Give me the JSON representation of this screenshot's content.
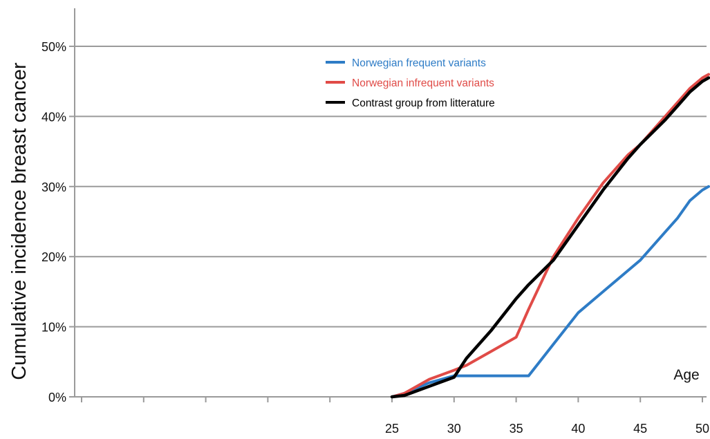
{
  "chart_data": {
    "type": "line",
    "xlabel": "Age",
    "ylabel": "Cumulative incidence breast cancer",
    "x_ticks": [
      25,
      30,
      35,
      40,
      45,
      50
    ],
    "x_tick_labels": [
      "25",
      "30",
      "35",
      "40",
      "45",
      "50"
    ],
    "y_ticks": [
      0,
      10,
      20,
      30,
      40,
      50
    ],
    "y_tick_labels": [
      "0%",
      "10%",
      "20%",
      "30%",
      "40%",
      "50%"
    ],
    "xlim": [
      0,
      51
    ],
    "ylim": [
      0,
      50
    ],
    "grid": "horizontal",
    "legend_position": "top-center",
    "series": [
      {
        "name": "Norwegian frequent variants",
        "color": "#2E7CC6",
        "x": [
          25,
          26,
          28,
          30,
          31,
          33,
          35,
          36,
          38,
          40,
          42,
          44,
          45,
          47,
          48,
          49,
          50,
          50.5
        ],
        "y": [
          0,
          0.5,
          2,
          3,
          3,
          3,
          3,
          3,
          7.5,
          12,
          15,
          18,
          19.5,
          23.5,
          25.5,
          28,
          29.5,
          30
        ]
      },
      {
        "name": "Norwegian infrequent variants",
        "color": "#E04B47",
        "x": [
          25,
          26,
          28,
          30,
          31,
          33,
          35,
          36,
          38,
          40,
          42,
          44,
          45,
          47,
          48,
          49,
          50,
          50.5
        ],
        "y": [
          0,
          0.5,
          2.5,
          3.8,
          4.5,
          6.5,
          8.5,
          12.5,
          20,
          25.5,
          30.5,
          34.5,
          36,
          40,
          42,
          44,
          45.5,
          46
        ]
      },
      {
        "name": "Contrast group from litterature",
        "color": "#000000",
        "x": [
          25,
          26,
          28,
          30,
          31,
          33,
          35,
          36,
          38,
          40,
          42,
          44,
          45,
          47,
          48,
          49,
          50,
          50.5
        ],
        "y": [
          0,
          0.2,
          1.5,
          2.8,
          5.5,
          9.5,
          14,
          16,
          19.5,
          24.5,
          29.5,
          34,
          36,
          39.5,
          41.5,
          43.5,
          45,
          45.5
        ]
      }
    ]
  }
}
